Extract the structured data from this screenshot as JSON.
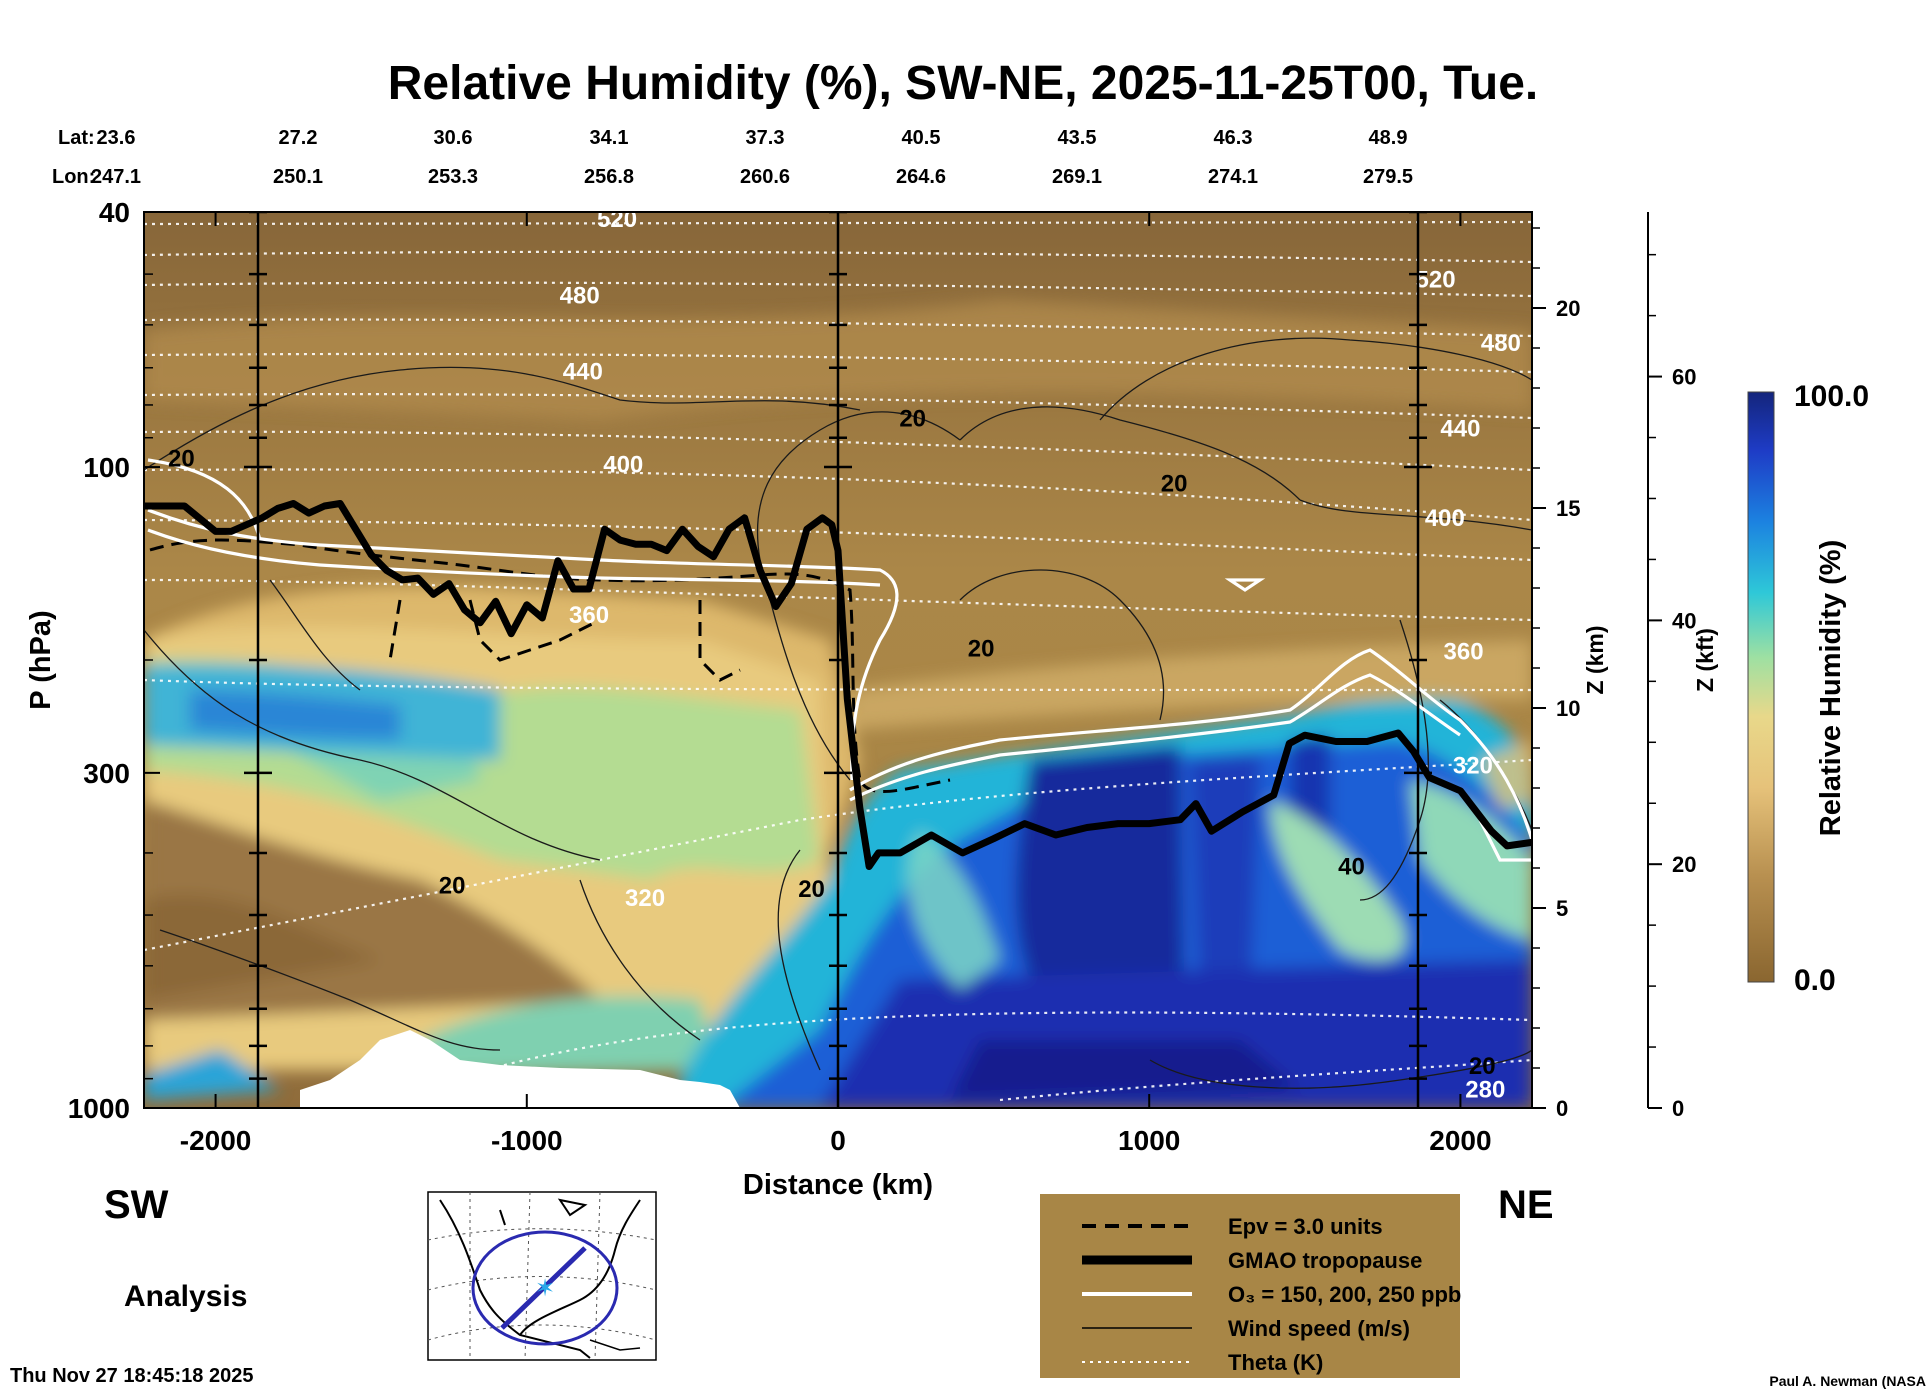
{
  "header": {
    "title": "Relative Humidity (%), SW-NE, 2025-11-25T00, Tue.",
    "lat_label": "Lat:",
    "lon_label": "Lon:",
    "lat_values": [
      "23.6",
      "27.2",
      "30.6",
      "34.1",
      "37.3",
      "40.5",
      "43.5",
      "46.3",
      "48.9"
    ],
    "lon_values": [
      "247.1",
      "250.1",
      "253.3",
      "256.8",
      "260.6",
      "264.6",
      "269.1",
      "274.1",
      "279.5"
    ]
  },
  "chart_data": {
    "type": "heatmap",
    "title": "Relative Humidity (%), SW-NE, 2025-11-25T00, Tue.",
    "xlabel": "Distance (km)",
    "ylabel": "P (hPa)",
    "y2label": "Z (km)",
    "y3label": "Z (kft)",
    "xlim": [
      -2230,
      2230
    ],
    "ylim": [
      1000,
      40
    ],
    "yscale": "log",
    "x_ticks": [
      "-2000",
      "-1000",
      "0",
      "1000",
      "2000"
    ],
    "y_ticks": [
      "40",
      "100",
      "300",
      "1000"
    ],
    "z_km_ticks": [
      "0",
      "5",
      "10",
      "15",
      "20"
    ],
    "z_kft_ticks": [
      "0",
      "20",
      "40",
      "60"
    ],
    "colorbar": {
      "label": "Relative Humidity (%)",
      "min": "0.0",
      "max": "100.0"
    },
    "theta_labels": [
      {
        "text": "520",
        "x": -710,
        "p": 41
      },
      {
        "text": "480",
        "x": -830,
        "p": 54
      },
      {
        "text": "440",
        "x": -820,
        "p": 71
      },
      {
        "text": "400",
        "x": -690,
        "p": 99
      },
      {
        "text": "360",
        "x": -800,
        "p": 170
      },
      {
        "text": "320",
        "x": -620,
        "p": 470
      },
      {
        "text": "520",
        "x": 1920,
        "p": 51
      },
      {
        "text": "480",
        "x": 2130,
        "p": 64
      },
      {
        "text": "440",
        "x": 2000,
        "p": 87
      },
      {
        "text": "400",
        "x": 1950,
        "p": 120
      },
      {
        "text": "360",
        "x": 2010,
        "p": 194
      },
      {
        "text": "320",
        "x": 2040,
        "p": 292
      },
      {
        "text": "280",
        "x": 2080,
        "p": 935
      }
    ],
    "windspeed_labels": [
      {
        "text": "20",
        "x": -2110,
        "p": 97
      },
      {
        "text": "20",
        "x": 240,
        "p": 84
      },
      {
        "text": "20",
        "x": 1080,
        "p": 106
      },
      {
        "text": "20",
        "x": 460,
        "p": 192
      },
      {
        "text": "20",
        "x": -1240,
        "p": 450
      },
      {
        "text": "20",
        "x": -85,
        "p": 455
      },
      {
        "text": "40",
        "x": 1650,
        "p": 420
      },
      {
        "text": "20",
        "x": 2070,
        "p": 860
      }
    ],
    "series": [
      {
        "name": "GMAO tropopause",
        "x": [
          -2230,
          -2100,
          -2000,
          -1950,
          -1850,
          -1800,
          -1750,
          -1700,
          -1650,
          -1600,
          -1500,
          -1450,
          -1400,
          -1350,
          -1300,
          -1250,
          -1200,
          -1150,
          -1100,
          -1050,
          -1000,
          -950,
          -900,
          -850,
          -800,
          -750,
          -700,
          -650,
          -600,
          -550,
          -500,
          -450,
          -400,
          -350,
          -300,
          -250,
          -200,
          -150,
          -100,
          -50,
          -20,
          0,
          30,
          70,
          100,
          130,
          200,
          300,
          400,
          500,
          600,
          700,
          800,
          900,
          1000,
          1100,
          1150,
          1200,
          1300,
          1400,
          1450,
          1500,
          1600,
          1700,
          1800,
          1850,
          1900,
          2000,
          2100,
          2150,
          2230
        ],
        "y": [
          115,
          115,
          126,
          126,
          120,
          116,
          114,
          118,
          115,
          114,
          137,
          145,
          150,
          149,
          158,
          152,
          167,
          175,
          162,
          182,
          164,
          172,
          140,
          155,
          155,
          125,
          130,
          132,
          132,
          135,
          125,
          133,
          138,
          125,
          120,
          145,
          165,
          152,
          125,
          120,
          123,
          135,
          230,
          340,
          420,
          400,
          400,
          375,
          400,
          380,
          360,
          375,
          365,
          360,
          360,
          355,
          335,
          370,
          345,
          325,
          270,
          262,
          268,
          268,
          260,
          278,
          305,
          320,
          370,
          390,
          385
        ]
      },
      {
        "name": "Epv = 3.0 units",
        "style": "dashed black"
      },
      {
        "name": "O₃ = 150, 200, 250 ppb",
        "style": "white"
      },
      {
        "name": "Wind speed (m/s)",
        "style": "thin black"
      },
      {
        "name": "Theta (K)",
        "style": "dotted white"
      }
    ]
  },
  "labels": {
    "sw": "SW",
    "ne": "NE",
    "analysis": "Analysis"
  },
  "legend": {
    "items": [
      {
        "label": "Epv = 3.0 units"
      },
      {
        "label": "GMAO tropopause"
      },
      {
        "label": "O₃ = 150, 200, 250 ppb"
      },
      {
        "label": "Wind speed (m/s)"
      },
      {
        "label": "Theta (K)"
      }
    ]
  },
  "footer": {
    "timestamp": "Thu Nov 27 18:45:18 2025",
    "credit": "Paul A. Newman (NASA"
  },
  "colors": {
    "dry": "#8c6a3a",
    "mid": "#e6c07a",
    "moist": "#22b0d8",
    "saturated": "#14269a",
    "legend_bg": "#a88646"
  }
}
